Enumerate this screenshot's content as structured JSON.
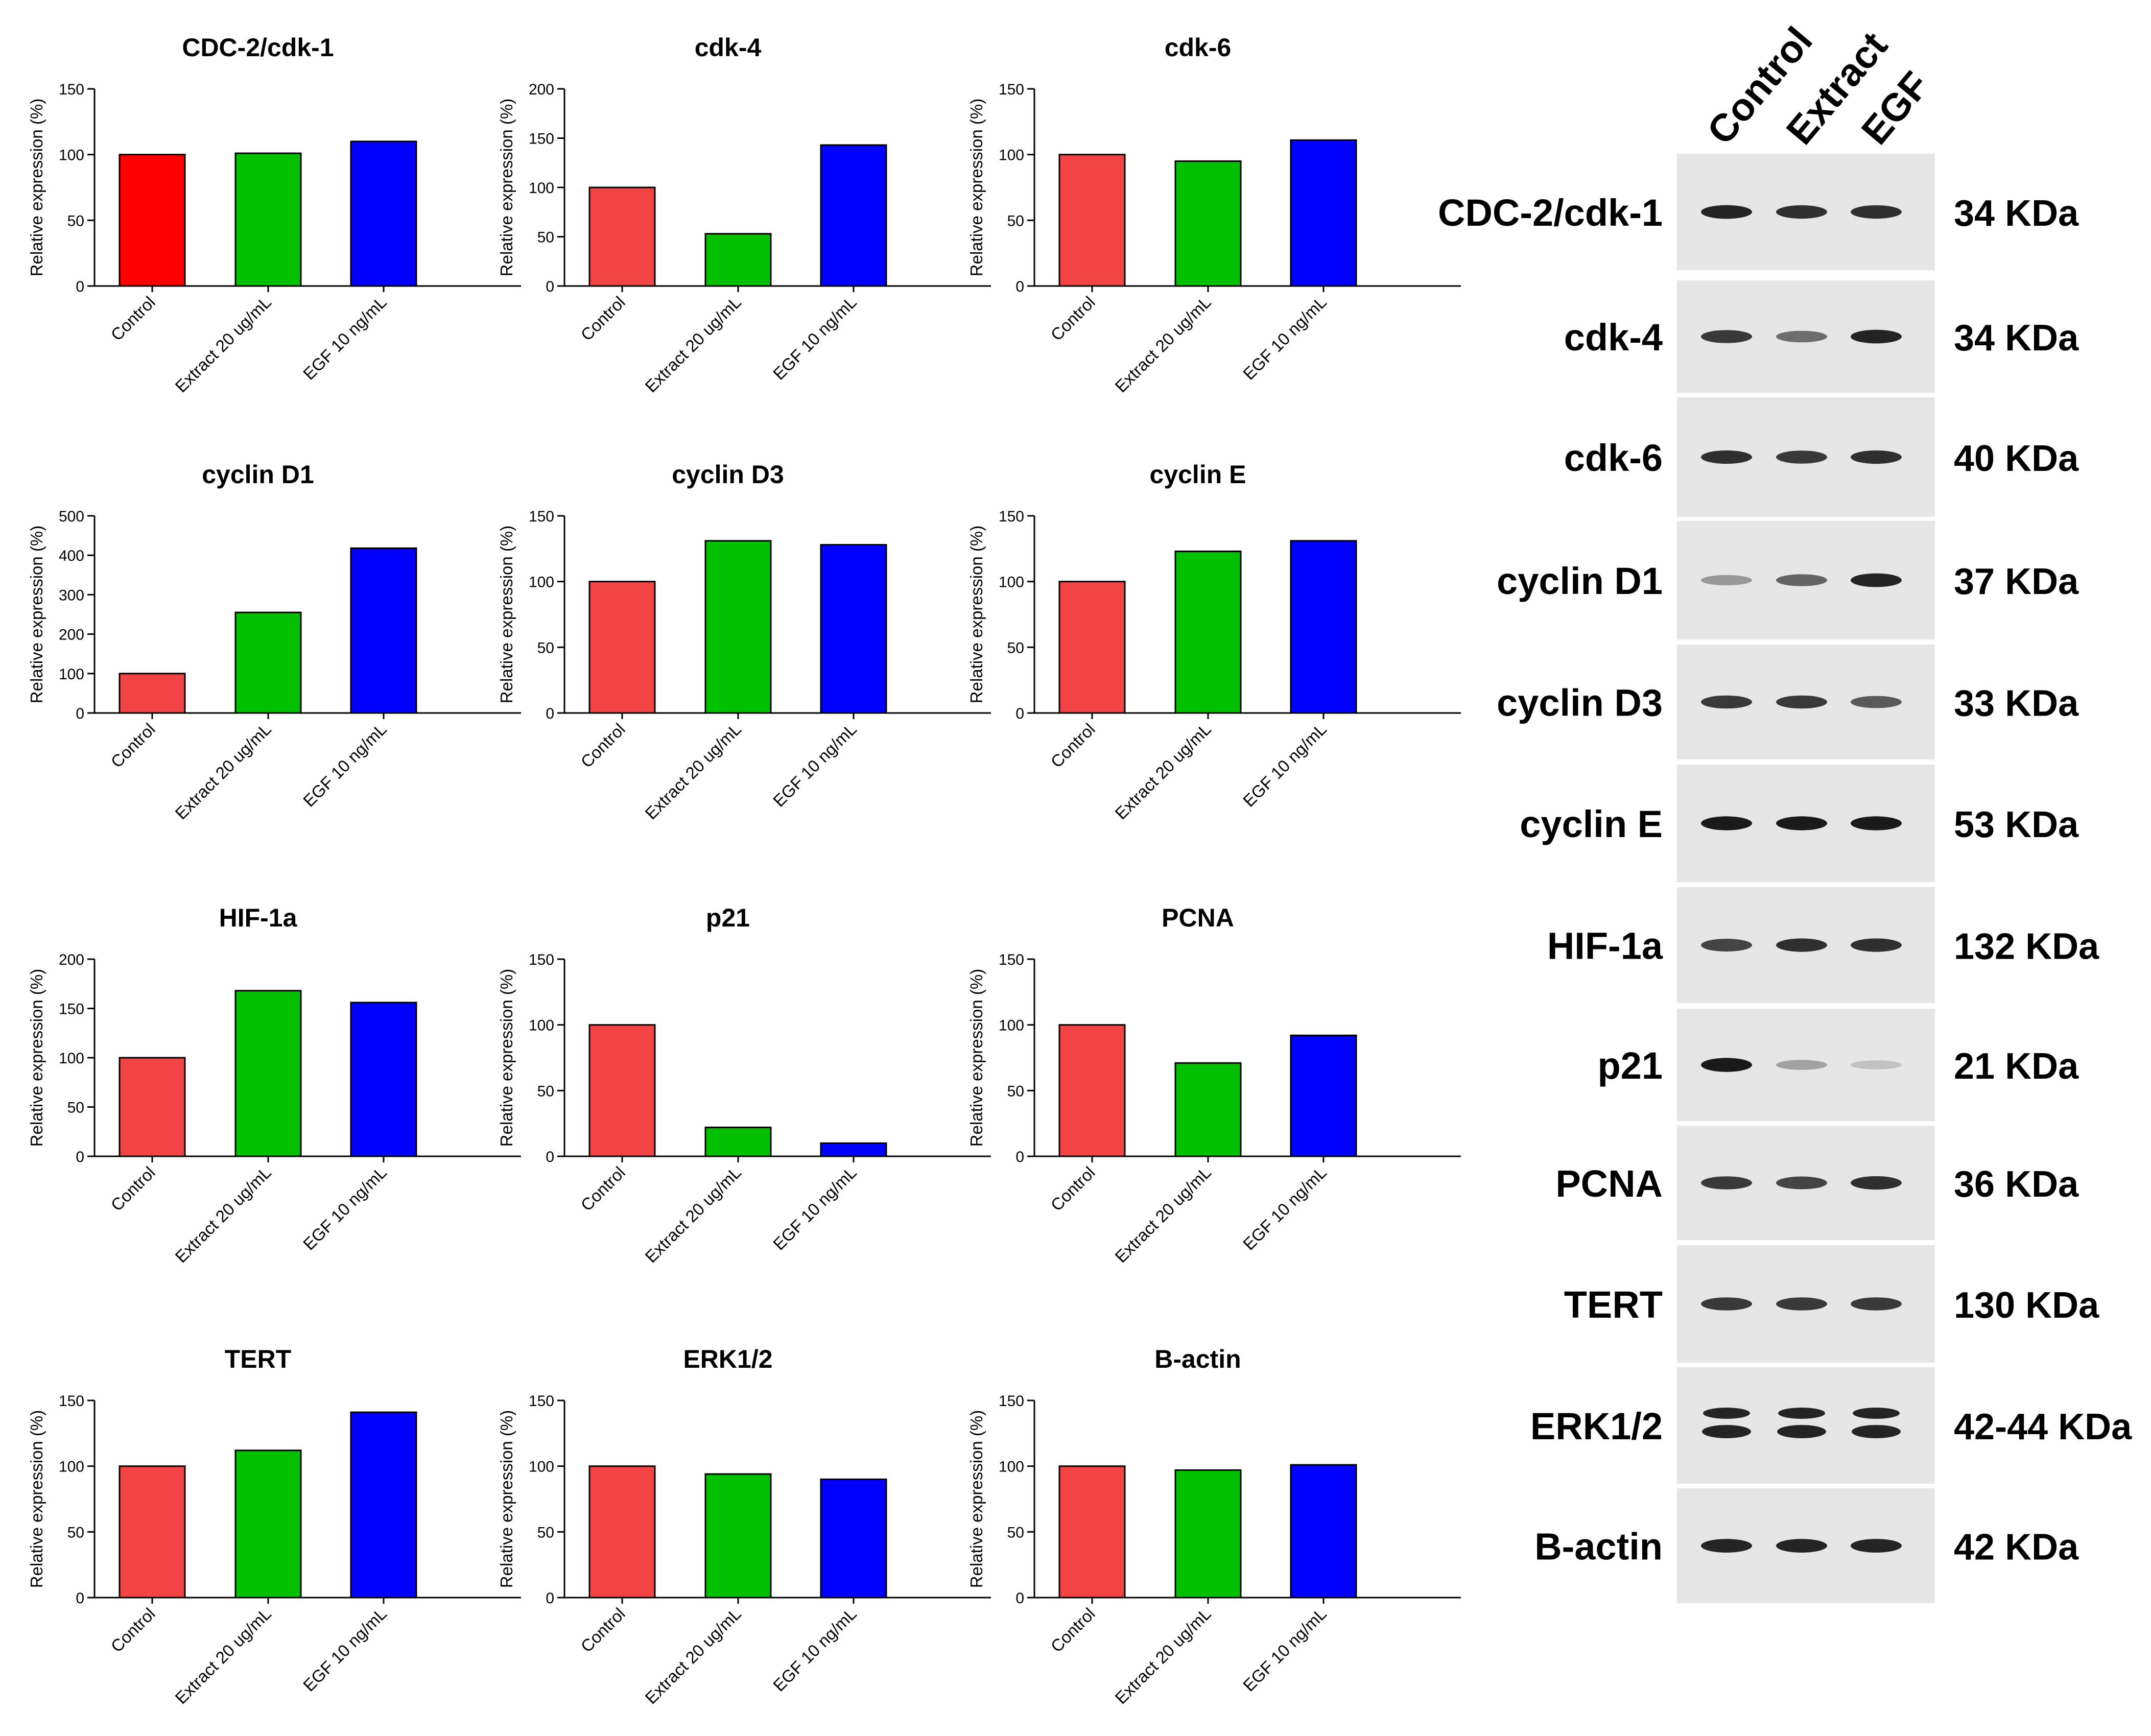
{
  "chart_data": [
    {
      "type": "bar",
      "title": "CDC-2/cdk-1",
      "ylabel": "Relative expression (%)",
      "categories": [
        "Control",
        "Extract 20 ug/mL",
        "EGF 10 ng/mL"
      ],
      "values": [
        100,
        101,
        110
      ],
      "ylim": [
        0,
        150
      ],
      "yticks": [
        0,
        50,
        100,
        150
      ],
      "colors": [
        "#ff0000",
        "#00c000",
        "#0000ff"
      ]
    },
    {
      "type": "bar",
      "title": "cdk-4",
      "ylabel": "Relative expression (%)",
      "categories": [
        "Control",
        "Extract 20 ug/mL",
        "EGF 10 ng/mL"
      ],
      "values": [
        100,
        53,
        143
      ],
      "ylim": [
        0,
        200
      ],
      "yticks": [
        0,
        50,
        100,
        150,
        200
      ],
      "colors": [
        "#f24444",
        "#00c000",
        "#0000ff"
      ]
    },
    {
      "type": "bar",
      "title": "cdk-6",
      "ylabel": "Relative expression (%)",
      "categories": [
        "Control",
        "Extract 20 ug/mL",
        "EGF 10 ng/mL"
      ],
      "values": [
        100,
        95,
        111
      ],
      "ylim": [
        0,
        150
      ],
      "yticks": [
        0,
        50,
        100,
        150
      ],
      "colors": [
        "#f24444",
        "#00c000",
        "#0000ff"
      ]
    },
    {
      "type": "bar",
      "title": "cyclin D1",
      "ylabel": "Relative expression (%)",
      "categories": [
        "Control",
        "Extract 20 ug/mL",
        "EGF 10 ng/mL"
      ],
      "values": [
        100,
        255,
        418
      ],
      "ylim": [
        0,
        500
      ],
      "yticks": [
        0,
        100,
        200,
        300,
        400,
        500
      ],
      "colors": [
        "#f24444",
        "#00c000",
        "#0000ff"
      ]
    },
    {
      "type": "bar",
      "title": "cyclin D3",
      "ylabel": "Relative expression (%)",
      "categories": [
        "Control",
        "Extract 20 ug/mL",
        "EGF 10 ng/mL"
      ],
      "values": [
        100,
        131,
        128
      ],
      "ylim": [
        0,
        150
      ],
      "yticks": [
        0,
        50,
        100,
        150
      ],
      "colors": [
        "#f24444",
        "#00c000",
        "#0000ff"
      ]
    },
    {
      "type": "bar",
      "title": "cyclin E",
      "ylabel": "Relative expression (%)",
      "categories": [
        "Control",
        "Extract 20 ug/mL",
        "EGF 10 ng/mL"
      ],
      "values": [
        100,
        123,
        131
      ],
      "ylim": [
        0,
        150
      ],
      "yticks": [
        0,
        50,
        100,
        150
      ],
      "colors": [
        "#f24444",
        "#00c000",
        "#0000ff"
      ]
    },
    {
      "type": "bar",
      "title": "HIF-1a",
      "ylabel": "Relative expression (%)",
      "categories": [
        "Control",
        "Extract 20 ug/mL",
        "EGF 10 ng/mL"
      ],
      "values": [
        100,
        168,
        156
      ],
      "ylim": [
        0,
        200
      ],
      "yticks": [
        0,
        50,
        100,
        150,
        200
      ],
      "colors": [
        "#f24444",
        "#00c000",
        "#0000ff"
      ]
    },
    {
      "type": "bar",
      "title": "p21",
      "ylabel": "Relative expression (%)",
      "categories": [
        "Control",
        "Extract 20 ug/mL",
        "EGF 10 ng/mL"
      ],
      "values": [
        100,
        22,
        10
      ],
      "ylim": [
        0,
        150
      ],
      "yticks": [
        0,
        50,
        100,
        150
      ],
      "colors": [
        "#f24444",
        "#00c000",
        "#0000ff"
      ]
    },
    {
      "type": "bar",
      "title": "PCNA",
      "ylabel": "Relative expression (%)",
      "categories": [
        "Control",
        "Extract 20 ug/mL",
        "EGF 10 ng/mL"
      ],
      "values": [
        100,
        71,
        92
      ],
      "ylim": [
        0,
        150
      ],
      "yticks": [
        0,
        50,
        100,
        150
      ],
      "colors": [
        "#f24444",
        "#00c000",
        "#0000ff"
      ]
    },
    {
      "type": "bar",
      "title": "TERT",
      "ylabel": "Relative expression (%)",
      "categories": [
        "Control",
        "Extract 20 ug/mL",
        "EGF 10 ng/mL"
      ],
      "values": [
        100,
        112,
        141
      ],
      "ylim": [
        0,
        150
      ],
      "yticks": [
        0,
        50,
        100,
        150
      ],
      "colors": [
        "#f24444",
        "#00c000",
        "#0000ff"
      ]
    },
    {
      "type": "bar",
      "title": "ERK1/2",
      "ylabel": "Relative expression (%)",
      "categories": [
        "Control",
        "Extract 20 ug/mL",
        "EGF 10 ng/mL"
      ],
      "values": [
        100,
        94,
        90
      ],
      "ylim": [
        0,
        150
      ],
      "yticks": [
        0,
        50,
        100,
        150
      ],
      "colors": [
        "#f24444",
        "#00c000",
        "#0000ff"
      ]
    },
    {
      "type": "bar",
      "title": "B-actin",
      "ylabel": "Relative expression (%)",
      "categories": [
        "Control",
        "Extract 20 ug/mL",
        "EGF 10 ng/mL"
      ],
      "values": [
        100,
        97,
        101
      ],
      "ylim": [
        0,
        150
      ],
      "yticks": [
        0,
        50,
        100,
        150
      ],
      "colors": [
        "#f24444",
        "#00c000",
        "#0000ff"
      ]
    }
  ],
  "blot": {
    "lanes": [
      "Control",
      "Extract",
      "EGF"
    ],
    "rows": [
      {
        "protein": "CDC-2/cdk-1",
        "kda": "34 KDa",
        "bands": [
          0.9,
          0.85,
          0.85
        ]
      },
      {
        "protein": "cdk-4",
        "kda": "34 KDa",
        "bands": [
          0.8,
          0.55,
          0.9
        ]
      },
      {
        "protein": "cdk-6",
        "kda": "40 KDa",
        "bands": [
          0.85,
          0.8,
          0.85
        ]
      },
      {
        "protein": "cyclin D1",
        "kda": "37 KDa",
        "bands": [
          0.35,
          0.6,
          0.9
        ]
      },
      {
        "protein": "cyclin D3",
        "kda": "33 KDa",
        "bands": [
          0.8,
          0.8,
          0.65
        ]
      },
      {
        "protein": "cyclin E",
        "kda": "53 KDa",
        "bands": [
          0.95,
          0.95,
          0.95
        ]
      },
      {
        "protein": "HIF-1a",
        "kda": "132 KDa",
        "bands": [
          0.75,
          0.85,
          0.85
        ]
      },
      {
        "protein": "p21",
        "kda": "21 KDa",
        "bands": [
          0.95,
          0.3,
          0.15
        ]
      },
      {
        "protein": "PCNA",
        "kda": "36 KDa",
        "bands": [
          0.8,
          0.75,
          0.85
        ]
      },
      {
        "protein": "TERT",
        "kda": "130 KDa",
        "bands": [
          0.8,
          0.8,
          0.8
        ]
      },
      {
        "protein": "ERK1/2",
        "kda": "42-44 KDa",
        "bands": [
          0.9,
          0.9,
          0.9
        ]
      },
      {
        "protein": "B-actin",
        "kda": "42 KDa",
        "bands": [
          0.9,
          0.9,
          0.9
        ]
      }
    ]
  }
}
